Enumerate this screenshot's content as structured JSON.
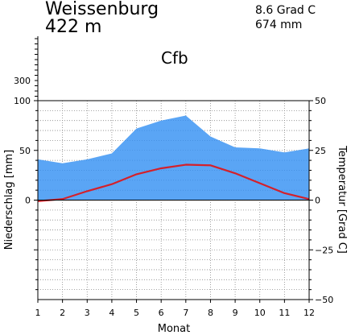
{
  "header": {
    "station": "Weissenburg",
    "altitude": "422 m",
    "mean_temp": "8.6 Grad C",
    "annual_precip": "674 mm",
    "climate_class": "Cfb"
  },
  "chart_data": {
    "type": "area",
    "title": "Weissenburg",
    "xlabel": "Monat",
    "ylabel_left": "Niederschlag [mm]",
    "ylabel_right": "Temperatur [Grad C]",
    "categories": [
      1,
      2,
      3,
      4,
      5,
      6,
      7,
      8,
      9,
      10,
      11,
      12
    ],
    "x_tick_labels": [
      "1",
      "2",
      "3",
      "4",
      "5",
      "6",
      "7",
      "8",
      "9",
      "10",
      "11",
      "12"
    ],
    "left_axis": {
      "ylim": [
        -100,
        100
      ],
      "tick_labels": [
        "0",
        "50",
        "100"
      ],
      "compressed_tick_label": "300"
    },
    "right_axis": {
      "ylim": [
        -50,
        50
      ],
      "tick_labels": [
        "−50",
        "−25",
        "0",
        "25",
        "50"
      ]
    },
    "grid": true,
    "series": [
      {
        "kind": "precipitation",
        "axis": "left",
        "color": "#5aa5f5",
        "values": [
          41,
          37,
          41,
          47,
          72,
          80,
          85,
          64,
          53,
          52,
          48,
          52
        ]
      },
      {
        "kind": "temperature",
        "axis": "right",
        "color": "#d4202a",
        "values": [
          -0.5,
          0.5,
          4.5,
          8,
          13,
          16,
          17.8,
          17.5,
          13.5,
          8.5,
          3.5,
          0.5
        ]
      }
    ]
  }
}
